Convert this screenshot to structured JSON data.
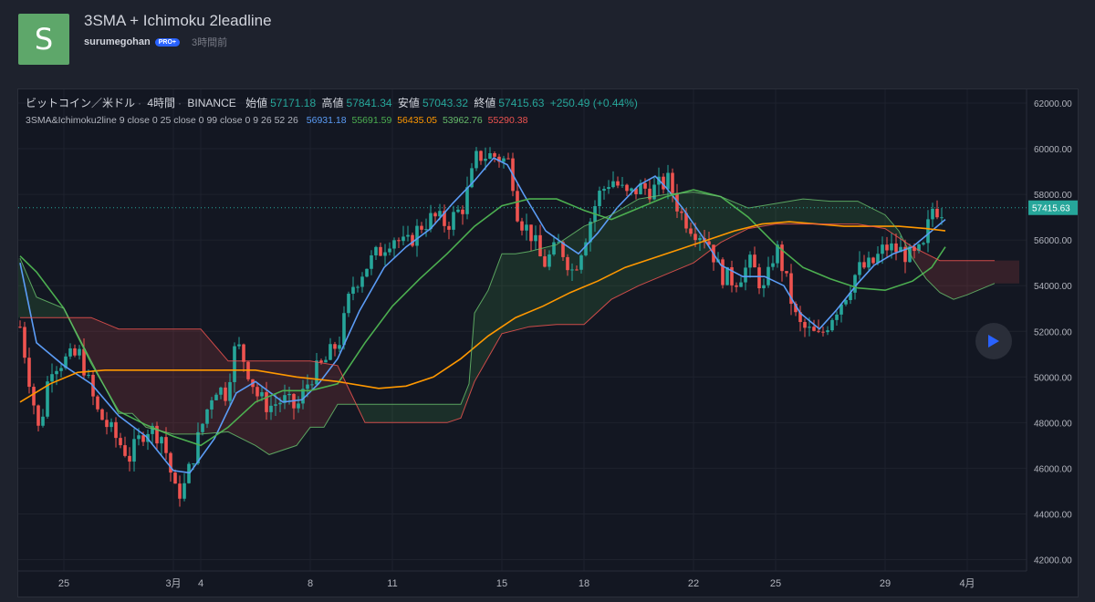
{
  "header": {
    "avatar_letter": "S",
    "title": "3SMA + Ichimoku 2leadline",
    "author": "surumegohan",
    "badge": "PRO+",
    "time_ago": "3時間前"
  },
  "legend": {
    "symbol": "ビットコイン／米ドル",
    "interval": "4時間",
    "exchange": "BINANCE",
    "open_label": "始値",
    "open": "57171.18",
    "high_label": "高値",
    "high": "57841.34",
    "low_label": "安値",
    "low": "57043.32",
    "close_label": "終値",
    "close": "57415.63",
    "change": "+250.49 (+0.44%)",
    "indicator": "3SMA&Ichimoku2line 9 close 0 25 close 0 99 close 0 9 26 52 26",
    "indicator_values": [
      {
        "value": "56931.18",
        "color": "#5b9cf6"
      },
      {
        "value": "55691.59",
        "color": "#4caf50"
      },
      {
        "value": "56435.05",
        "color": "#ff9800"
      },
      {
        "value": "53962.76",
        "color": "#66bb6a"
      },
      {
        "value": "55290.38",
        "color": "#ef5350"
      }
    ]
  },
  "colors": {
    "up": "#26a69a",
    "down": "#ef5350",
    "sma_fast": "#5b9cf6",
    "sma_mid": "#4caf50",
    "sma_slow": "#ff9800",
    "span_a": "#66bb6a",
    "span_b": "#ef5350"
  },
  "chart_data": {
    "type": "candlestick",
    "symbol": "ビットコイン／米ドル",
    "ylim": [
      41500,
      62600
    ],
    "y_ticks": [
      "62000.00",
      "60000.00",
      "58000.00",
      "56000.00",
      "54000.00",
      "52000.00",
      "50000.00",
      "48000.00",
      "46000.00",
      "44000.00",
      "42000.00"
    ],
    "last_price_label": "57415.63",
    "last_price": 57415.63,
    "x_ticks": [
      {
        "label": "25",
        "day": 0
      },
      {
        "label": "3月",
        "day": 4
      },
      {
        "label": "4",
        "day": 5
      },
      {
        "label": "8",
        "day": 9
      },
      {
        "label": "11",
        "day": 12
      },
      {
        "label": "15",
        "day": 16
      },
      {
        "label": "18",
        "day": 19
      },
      {
        "label": "22",
        "day": 23
      },
      {
        "label": "25",
        "day": 26
      },
      {
        "label": "29",
        "day": 30
      },
      {
        "label": "4月",
        "day": 33
      }
    ],
    "price_path": [
      [
        -1.6,
        52200
      ],
      [
        -1.2,
        49500
      ],
      [
        -0.9,
        47500
      ],
      [
        -0.5,
        50500
      ],
      [
        0.2,
        50800
      ],
      [
        0.6,
        51000
      ],
      [
        1.2,
        48500
      ],
      [
        1.8,
        47500
      ],
      [
        2.4,
        46500
      ],
      [
        3.0,
        47800
      ],
      [
        3.6,
        47400
      ],
      [
        4.1,
        44800
      ],
      [
        4.4,
        45200
      ],
      [
        5.0,
        47700
      ],
      [
        5.5,
        49600
      ],
      [
        5.9,
        49300
      ],
      [
        6.3,
        51500
      ],
      [
        6.6,
        50700
      ],
      [
        7.1,
        49100
      ],
      [
        7.5,
        48700
      ],
      [
        8.0,
        49000
      ],
      [
        8.5,
        48600
      ],
      [
        9.0,
        50000
      ],
      [
        9.5,
        50600
      ],
      [
        10.1,
        51700
      ],
      [
        10.5,
        53900
      ],
      [
        11.0,
        54800
      ],
      [
        11.6,
        55600
      ],
      [
        12.0,
        56200
      ],
      [
        12.5,
        55700
      ],
      [
        13.0,
        56600
      ],
      [
        13.5,
        57000
      ],
      [
        14.0,
        56700
      ],
      [
        14.6,
        57500
      ],
      [
        15.1,
        59700
      ],
      [
        15.7,
        59700
      ],
      [
        16.3,
        59400
      ],
      [
        16.6,
        57000
      ],
      [
        17.1,
        56200
      ],
      [
        17.5,
        54900
      ],
      [
        18.1,
        55800
      ],
      [
        18.6,
        54600
      ],
      [
        19.0,
        56000
      ],
      [
        19.5,
        57900
      ],
      [
        20.0,
        58700
      ],
      [
        20.6,
        57900
      ],
      [
        21.0,
        58300
      ],
      [
        21.5,
        58200
      ],
      [
        22.1,
        58600
      ],
      [
        22.5,
        57200
      ],
      [
        23.0,
        56500
      ],
      [
        23.5,
        56100
      ],
      [
        24.0,
        54500
      ],
      [
        24.5,
        54200
      ],
      [
        25.1,
        55000
      ],
      [
        25.6,
        53700
      ],
      [
        26.0,
        55800
      ],
      [
        26.3,
        54600
      ],
      [
        26.8,
        52300
      ],
      [
        27.2,
        52000
      ],
      [
        27.6,
        51700
      ],
      [
        28.1,
        52800
      ],
      [
        28.5,
        53500
      ],
      [
        29.0,
        54700
      ],
      [
        29.5,
        54900
      ],
      [
        30.0,
        55700
      ],
      [
        30.6,
        55500
      ],
      [
        31.0,
        55200
      ],
      [
        31.4,
        55600
      ],
      [
        31.7,
        57400
      ],
      [
        32.2,
        57300
      ]
    ],
    "series": [
      {
        "name": "SMA 9",
        "color": "#5b9cf6",
        "points": [
          [
            -1.6,
            55000
          ],
          [
            -1.0,
            51500
          ],
          [
            0.0,
            50500
          ],
          [
            1.0,
            49700
          ],
          [
            2.0,
            48300
          ],
          [
            3.0,
            47400
          ],
          [
            4.0,
            45900
          ],
          [
            4.6,
            45800
          ],
          [
            5.5,
            47300
          ],
          [
            6.3,
            49300
          ],
          [
            7.0,
            49800
          ],
          [
            8.0,
            48900
          ],
          [
            8.7,
            49000
          ],
          [
            9.3,
            49700
          ],
          [
            10.0,
            50800
          ],
          [
            10.8,
            52900
          ],
          [
            11.7,
            54800
          ],
          [
            12.5,
            55700
          ],
          [
            13.4,
            56500
          ],
          [
            14.2,
            57600
          ],
          [
            15.0,
            58600
          ],
          [
            15.7,
            59600
          ],
          [
            16.2,
            59300
          ],
          [
            16.8,
            58000
          ],
          [
            17.6,
            56400
          ],
          [
            18.3,
            55800
          ],
          [
            18.8,
            55400
          ],
          [
            19.5,
            56300
          ],
          [
            20.2,
            57400
          ],
          [
            21.0,
            58400
          ],
          [
            21.6,
            58800
          ],
          [
            22.0,
            58300
          ],
          [
            22.6,
            57400
          ],
          [
            23.3,
            56200
          ],
          [
            24.0,
            54900
          ],
          [
            24.8,
            54400
          ],
          [
            25.6,
            54400
          ],
          [
            26.3,
            54000
          ],
          [
            26.9,
            52800
          ],
          [
            27.6,
            52100
          ],
          [
            28.2,
            52900
          ],
          [
            29.0,
            54100
          ],
          [
            29.6,
            54900
          ],
          [
            30.3,
            55400
          ],
          [
            31.0,
            55700
          ],
          [
            31.5,
            56200
          ],
          [
            32.2,
            56900
          ]
        ]
      },
      {
        "name": "SMA 25",
        "color": "#4caf50",
        "points": [
          [
            -1.6,
            55300
          ],
          [
            -1.0,
            54600
          ],
          [
            0.0,
            53000
          ],
          [
            1.0,
            50600
          ],
          [
            2.0,
            48500
          ],
          [
            3.0,
            47900
          ],
          [
            4.0,
            47400
          ],
          [
            5.0,
            47000
          ],
          [
            6.0,
            47800
          ],
          [
            7.0,
            48900
          ],
          [
            8.0,
            49400
          ],
          [
            9.0,
            49400
          ],
          [
            10.0,
            49700
          ],
          [
            11.0,
            51500
          ],
          [
            12.0,
            53100
          ],
          [
            13.0,
            54300
          ],
          [
            14.0,
            55400
          ],
          [
            15.0,
            56600
          ],
          [
            16.0,
            57500
          ],
          [
            17.0,
            57800
          ],
          [
            18.0,
            57800
          ],
          [
            19.0,
            57300
          ],
          [
            20.0,
            56900
          ],
          [
            21.0,
            57400
          ],
          [
            22.0,
            57900
          ],
          [
            23.0,
            58200
          ],
          [
            24.0,
            57900
          ],
          [
            25.0,
            57000
          ],
          [
            26.0,
            55800
          ],
          [
            27.0,
            54800
          ],
          [
            28.0,
            54300
          ],
          [
            29.0,
            53900
          ],
          [
            30.0,
            53800
          ],
          [
            31.0,
            54200
          ],
          [
            31.7,
            54800
          ],
          [
            32.2,
            55700
          ]
        ]
      },
      {
        "name": "SMA 99",
        "color": "#ff9800",
        "points": [
          [
            -1.6,
            48900
          ],
          [
            -0.5,
            49700
          ],
          [
            0.5,
            50200
          ],
          [
            1.5,
            50300
          ],
          [
            3.0,
            50300
          ],
          [
            5.0,
            50300
          ],
          [
            7.0,
            50300
          ],
          [
            8.5,
            50000
          ],
          [
            10.0,
            49800
          ],
          [
            11.5,
            49500
          ],
          [
            12.5,
            49600
          ],
          [
            13.5,
            50000
          ],
          [
            14.5,
            50800
          ],
          [
            15.5,
            51800
          ],
          [
            16.5,
            52600
          ],
          [
            17.5,
            53100
          ],
          [
            18.5,
            53700
          ],
          [
            19.5,
            54200
          ],
          [
            20.5,
            54800
          ],
          [
            21.5,
            55200
          ],
          [
            22.5,
            55600
          ],
          [
            23.5,
            56000
          ],
          [
            24.5,
            56400
          ],
          [
            25.5,
            56700
          ],
          [
            26.5,
            56800
          ],
          [
            27.5,
            56700
          ],
          [
            28.5,
            56600
          ],
          [
            29.5,
            56600
          ],
          [
            30.5,
            56600
          ],
          [
            31.5,
            56500
          ],
          [
            32.2,
            56400
          ]
        ]
      },
      {
        "name": "Span A",
        "color": "#66bb6a",
        "points": [
          [
            -1.6,
            55200
          ],
          [
            -1.0,
            53500
          ],
          [
            0.0,
            53000
          ],
          [
            1.0,
            50700
          ],
          [
            2.0,
            48400
          ],
          [
            2.5,
            48400
          ],
          [
            3.0,
            47800
          ],
          [
            4.0,
            47500
          ],
          [
            5.0,
            47500
          ],
          [
            6.0,
            47600
          ],
          [
            7.0,
            47000
          ],
          [
            7.5,
            46600
          ],
          [
            8.5,
            47000
          ],
          [
            9.0,
            47800
          ],
          [
            9.5,
            47800
          ],
          [
            10.0,
            48800
          ],
          [
            10.5,
            48800
          ],
          [
            11.0,
            48800
          ],
          [
            12.0,
            48800
          ],
          [
            13.0,
            48800
          ],
          [
            14.0,
            48800
          ],
          [
            14.5,
            48800
          ],
          [
            14.8,
            49700
          ],
          [
            15.0,
            52800
          ],
          [
            15.5,
            53800
          ],
          [
            16.0,
            55400
          ],
          [
            16.5,
            55400
          ],
          [
            17.0,
            55500
          ],
          [
            18.0,
            55800
          ],
          [
            19.0,
            56600
          ],
          [
            20.0,
            57100
          ],
          [
            21.0,
            57800
          ],
          [
            22.0,
            58000
          ],
          [
            23.0,
            58100
          ],
          [
            24.0,
            57900
          ],
          [
            25.0,
            57400
          ],
          [
            26.0,
            57600
          ],
          [
            27.0,
            57800
          ],
          [
            28.0,
            57700
          ],
          [
            29.0,
            57700
          ],
          [
            30.0,
            57100
          ],
          [
            30.5,
            56400
          ],
          [
            31.0,
            55200
          ],
          [
            31.5,
            54300
          ],
          [
            32.0,
            53700
          ],
          [
            32.5,
            53400
          ],
          [
            33.0,
            53600
          ],
          [
            34.0,
            54100
          ]
        ]
      },
      {
        "name": "Span B",
        "color": "#ef5350",
        "points": [
          [
            -1.6,
            52600
          ],
          [
            -1.0,
            52600
          ],
          [
            0.0,
            52600
          ],
          [
            1.0,
            52600
          ],
          [
            2.0,
            52100
          ],
          [
            3.0,
            52100
          ],
          [
            4.0,
            52100
          ],
          [
            5.0,
            52100
          ],
          [
            6.0,
            50700
          ],
          [
            7.0,
            50700
          ],
          [
            8.0,
            50700
          ],
          [
            9.0,
            50700
          ],
          [
            10.0,
            50500
          ],
          [
            11.0,
            48000
          ],
          [
            12.0,
            48000
          ],
          [
            13.0,
            48000
          ],
          [
            14.0,
            48000
          ],
          [
            14.5,
            48200
          ],
          [
            15.0,
            49800
          ],
          [
            16.0,
            51900
          ],
          [
            17.0,
            52200
          ],
          [
            18.0,
            52300
          ],
          [
            19.0,
            52300
          ],
          [
            20.0,
            53400
          ],
          [
            21.0,
            54000
          ],
          [
            22.0,
            54500
          ],
          [
            23.0,
            55000
          ],
          [
            24.0,
            55900
          ],
          [
            25.0,
            56500
          ],
          [
            26.0,
            56700
          ],
          [
            27.0,
            56700
          ],
          [
            28.0,
            56700
          ],
          [
            29.0,
            56700
          ],
          [
            30.0,
            56500
          ],
          [
            31.0,
            55700
          ],
          [
            32.0,
            55100
          ],
          [
            34.0,
            55100
          ]
        ]
      }
    ]
  }
}
